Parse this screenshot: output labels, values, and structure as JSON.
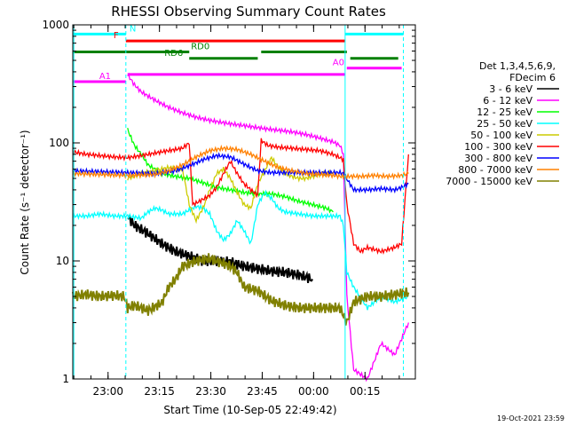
{
  "chart_data": {
    "type": "line",
    "title": "RHESSI Observing Summary Count Rates",
    "xlabel": "Start Time (10-Sep-05 22:49:42)",
    "ylabel": "Count Rate (s⁻¹ detector⁻¹)",
    "yscale": "log",
    "ylim": [
      1,
      1000
    ],
    "xlim": [
      0,
      100
    ],
    "x_ticks": [
      {
        "label": "23:00",
        "x": 10.3
      },
      {
        "label": "23:15",
        "x": 25.3
      },
      {
        "label": "23:30",
        "x": 40.3
      },
      {
        "label": "23:45",
        "x": 55.3
      },
      {
        "label": "00:00",
        "x": 70.3
      },
      {
        "label": "00:15",
        "x": 85.3
      }
    ],
    "y_ticks": [
      {
        "label": "1",
        "v": 1
      },
      {
        "label": "10",
        "v": 10
      },
      {
        "label": "100",
        "v": 100
      },
      {
        "label": "1000",
        "v": 1000
      }
    ],
    "legend_header": [
      "Det 1,3,4,5,6,9,",
      "FDecim 6"
    ],
    "legend_position": "right",
    "series": [
      {
        "name": "3 - 6 keV",
        "color": "#000000",
        "points": [
          [
            16,
            24
          ],
          [
            18,
            20
          ],
          [
            22,
            17
          ],
          [
            26,
            14
          ],
          [
            30,
            12
          ],
          [
            34,
            11
          ],
          [
            38,
            10
          ],
          [
            42,
            10
          ],
          [
            46,
            9.8
          ],
          [
            50,
            9
          ],
          [
            54,
            8.6
          ],
          [
            58,
            8.2
          ],
          [
            62,
            8
          ],
          [
            66,
            7.6
          ],
          [
            70,
            7
          ]
        ]
      },
      {
        "name": "6 - 12 keV",
        "color": "#ff00ff",
        "points": [
          [
            16,
            380
          ],
          [
            18,
            310
          ],
          [
            20,
            270
          ],
          [
            24,
            230
          ],
          [
            28,
            200
          ],
          [
            32,
            180
          ],
          [
            36,
            165
          ],
          [
            40,
            155
          ],
          [
            46,
            145
          ],
          [
            50,
            140
          ],
          [
            56,
            132
          ],
          [
            60,
            128
          ],
          [
            64,
            124
          ],
          [
            68,
            118
          ],
          [
            72,
            110
          ],
          [
            76,
            102
          ],
          [
            78,
            95
          ],
          [
            79,
            80
          ],
          [
            80,
            5
          ],
          [
            82,
            1.2
          ],
          [
            86,
            1
          ],
          [
            90,
            2
          ],
          [
            94,
            1.6
          ],
          [
            98,
            3
          ]
        ]
      },
      {
        "name": "12 - 25 keV",
        "color": "#00ff00",
        "points": [
          [
            16,
            130
          ],
          [
            18,
            95
          ],
          [
            20,
            80
          ],
          [
            22,
            65
          ],
          [
            26,
            55
          ],
          [
            30,
            52
          ],
          [
            34,
            50
          ],
          [
            38,
            46
          ],
          [
            42,
            42
          ],
          [
            46,
            40
          ],
          [
            50,
            38
          ],
          [
            54,
            37
          ],
          [
            58,
            37
          ],
          [
            62,
            35
          ],
          [
            66,
            32
          ],
          [
            70,
            30
          ],
          [
            74,
            28
          ],
          [
            76,
            26
          ]
        ]
      },
      {
        "name": "25 - 50 keV",
        "color": "#00ffff",
        "points": [
          [
            0,
            24
          ],
          [
            4,
            24
          ],
          [
            8,
            25
          ],
          [
            12,
            24
          ],
          [
            16,
            24
          ],
          [
            20,
            23
          ],
          [
            22,
            26
          ],
          [
            24,
            28
          ],
          [
            26,
            27
          ],
          [
            28,
            25
          ],
          [
            32,
            25
          ],
          [
            34,
            27
          ],
          [
            36,
            29
          ],
          [
            38,
            28
          ],
          [
            40,
            25
          ],
          [
            42,
            18
          ],
          [
            44,
            15
          ],
          [
            46,
            17
          ],
          [
            48,
            22
          ],
          [
            50,
            18
          ],
          [
            52,
            14
          ],
          [
            54,
            30
          ],
          [
            56,
            38
          ],
          [
            58,
            34
          ],
          [
            60,
            28
          ],
          [
            62,
            26
          ],
          [
            66,
            25
          ],
          [
            70,
            24
          ],
          [
            74,
            24
          ],
          [
            78,
            24
          ],
          [
            79,
            20
          ],
          [
            80,
            8
          ],
          [
            82,
            6
          ],
          [
            86,
            4
          ],
          [
            90,
            5
          ],
          [
            94,
            4.5
          ],
          [
            98,
            5
          ]
        ]
      },
      {
        "name": "50 - 100 keV",
        "color": "#cccc00",
        "points": [
          [
            16,
            50
          ],
          [
            20,
            55
          ],
          [
            24,
            58
          ],
          [
            28,
            62
          ],
          [
            32,
            60
          ],
          [
            34,
            30
          ],
          [
            36,
            22
          ],
          [
            38,
            28
          ],
          [
            40,
            40
          ],
          [
            42,
            55
          ],
          [
            44,
            60
          ],
          [
            46,
            50
          ],
          [
            48,
            38
          ],
          [
            50,
            30
          ],
          [
            52,
            28
          ],
          [
            54,
            45
          ],
          [
            56,
            58
          ],
          [
            58,
            75
          ],
          [
            60,
            62
          ],
          [
            62,
            55
          ],
          [
            64,
            52
          ],
          [
            66,
            50
          ],
          [
            68,
            50
          ],
          [
            70,
            52
          ],
          [
            72,
            54
          ],
          [
            74,
            55
          ],
          [
            76,
            56
          ]
        ]
      },
      {
        "name": "100 - 300 keV",
        "color": "#ff0000",
        "points": [
          [
            0,
            84
          ],
          [
            4,
            80
          ],
          [
            8,
            78
          ],
          [
            12,
            76
          ],
          [
            16,
            75
          ],
          [
            20,
            78
          ],
          [
            24,
            82
          ],
          [
            28,
            86
          ],
          [
            32,
            90
          ],
          [
            34,
            100
          ],
          [
            35,
            30
          ],
          [
            37,
            32
          ],
          [
            40,
            36
          ],
          [
            42,
            42
          ],
          [
            44,
            55
          ],
          [
            46,
            70
          ],
          [
            48,
            55
          ],
          [
            50,
            45
          ],
          [
            52,
            40
          ],
          [
            54,
            36
          ],
          [
            55,
            105
          ],
          [
            57,
            95
          ],
          [
            60,
            92
          ],
          [
            64,
            90
          ],
          [
            68,
            88
          ],
          [
            72,
            86
          ],
          [
            76,
            80
          ],
          [
            78,
            75
          ],
          [
            79,
            72
          ],
          [
            80,
            30
          ],
          [
            82,
            14
          ],
          [
            84,
            12
          ],
          [
            86,
            13
          ],
          [
            90,
            12
          ],
          [
            94,
            13
          ],
          [
            96,
            14
          ],
          [
            98,
            80
          ]
        ]
      },
      {
        "name": "300 - 800 keV",
        "color": "#0000ff",
        "points": [
          [
            0,
            58
          ],
          [
            8,
            57
          ],
          [
            16,
            56
          ],
          [
            24,
            55
          ],
          [
            30,
            58
          ],
          [
            34,
            64
          ],
          [
            38,
            72
          ],
          [
            42,
            78
          ],
          [
            46,
            76
          ],
          [
            50,
            66
          ],
          [
            54,
            58
          ],
          [
            58,
            56
          ],
          [
            62,
            56
          ],
          [
            66,
            56
          ],
          [
            70,
            56
          ],
          [
            74,
            56
          ],
          [
            78,
            56
          ],
          [
            79,
            55
          ],
          [
            82,
            40
          ],
          [
            86,
            40
          ],
          [
            90,
            41
          ],
          [
            94,
            40
          ],
          [
            96,
            42
          ],
          [
            98,
            45
          ]
        ]
      },
      {
        "name": "800 - 7000 keV",
        "color": "#ff8000",
        "points": [
          [
            0,
            55
          ],
          [
            8,
            54
          ],
          [
            16,
            53
          ],
          [
            24,
            54
          ],
          [
            28,
            58
          ],
          [
            32,
            65
          ],
          [
            36,
            76
          ],
          [
            40,
            86
          ],
          [
            44,
            90
          ],
          [
            48,
            88
          ],
          [
            52,
            80
          ],
          [
            56,
            70
          ],
          [
            60,
            62
          ],
          [
            64,
            58
          ],
          [
            68,
            55
          ],
          [
            72,
            54
          ],
          [
            76,
            53
          ],
          [
            78,
            52
          ],
          [
            80,
            52
          ],
          [
            84,
            52
          ],
          [
            88,
            53
          ],
          [
            92,
            52
          ],
          [
            96,
            53
          ],
          [
            98,
            55
          ]
        ]
      },
      {
        "name": "7000 - 15000 keV",
        "color": "#808000",
        "points": [
          [
            0,
            5
          ],
          [
            4,
            5.2
          ],
          [
            8,
            5
          ],
          [
            12,
            5.1
          ],
          [
            15,
            5
          ],
          [
            16,
            4
          ],
          [
            18,
            4.2
          ],
          [
            22,
            3.8
          ],
          [
            26,
            4.4
          ],
          [
            28,
            6
          ],
          [
            30,
            7
          ],
          [
            32,
            9
          ],
          [
            36,
            10
          ],
          [
            40,
            10.5
          ],
          [
            44,
            9.5
          ],
          [
            46,
            9
          ],
          [
            48,
            8
          ],
          [
            50,
            6
          ],
          [
            54,
            5.6
          ],
          [
            58,
            4.6
          ],
          [
            62,
            4.2
          ],
          [
            66,
            4
          ],
          [
            70,
            4
          ],
          [
            74,
            4
          ],
          [
            78,
            4
          ],
          [
            80,
            3
          ],
          [
            82,
            4.5
          ],
          [
            86,
            5
          ],
          [
            90,
            5
          ],
          [
            94,
            5.2
          ],
          [
            98,
            5.4
          ]
        ]
      }
    ],
    "bars": [
      {
        "label": "N",
        "color": "#00ffff",
        "y": 835,
        "segments": [
          [
            0,
            15.5
          ],
          [
            79.5,
            96.5
          ]
        ]
      },
      {
        "label": "F",
        "color": "#ff0000",
        "y": 730,
        "segments": [
          [
            15.5,
            79.5
          ]
        ]
      },
      {
        "label": "RD0",
        "color": "#008000",
        "y": 590,
        "segments": [
          [
            0,
            34
          ],
          [
            55,
            80
          ]
        ]
      },
      {
        "label": "RD6",
        "color": "#008000",
        "y": 520,
        "segments": [
          [
            34,
            54
          ],
          [
            81,
            95
          ]
        ]
      },
      {
        "label": "A0",
        "color": "#ff00ff",
        "y": 430,
        "segments": [
          [
            80,
            96
          ]
        ]
      },
      {
        "label": "A1",
        "color": "#ff00ff",
        "y": 330,
        "segments": [
          [
            0,
            15.5
          ]
        ]
      },
      {
        "label": "",
        "color": "#ff00ff",
        "y": 380,
        "segments": [
          [
            16,
            79.5
          ]
        ]
      }
    ],
    "vlines": [
      0.3,
      15.5,
      79.5,
      96.5
    ]
  },
  "timestamp": "19-Oct-2021 23:59"
}
